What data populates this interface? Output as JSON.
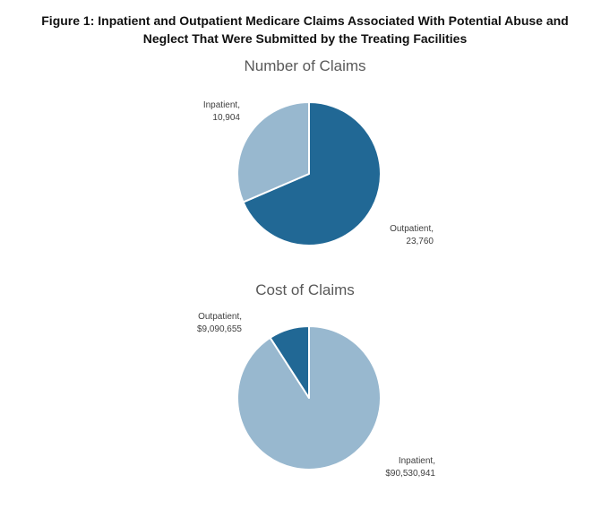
{
  "figure": {
    "title_line1": "Figure 1: Inpatient and Outpatient Medicare Claims Associated With Potential Abuse and",
    "title_line2": "Neglect That Were Submitted by the Treating Facilities"
  },
  "colors": {
    "dark_blue": "#216895",
    "light_blue": "#98b8cf",
    "separator": "#ffffff"
  },
  "chart_data": [
    {
      "type": "pie",
      "title": "Number of Claims",
      "slices": [
        {
          "name": "Outpatient",
          "value": 23760,
          "label_name": "Outpatient,",
          "label_value": "23,760",
          "color": "#216895"
        },
        {
          "name": "Inpatient",
          "value": 10904,
          "label_name": "Inpatient,",
          "label_value": "10,904",
          "color": "#98b8cf"
        }
      ]
    },
    {
      "type": "pie",
      "title": "Cost of Claims",
      "slices": [
        {
          "name": "Inpatient",
          "value": 90530941,
          "label_name": "Inpatient,",
          "label_value": "$90,530,941",
          "color": "#98b8cf"
        },
        {
          "name": "Outpatient",
          "value": 9090655,
          "label_name": "Outpatient,",
          "label_value": "$9,090,655",
          "color": "#216895"
        }
      ]
    }
  ]
}
